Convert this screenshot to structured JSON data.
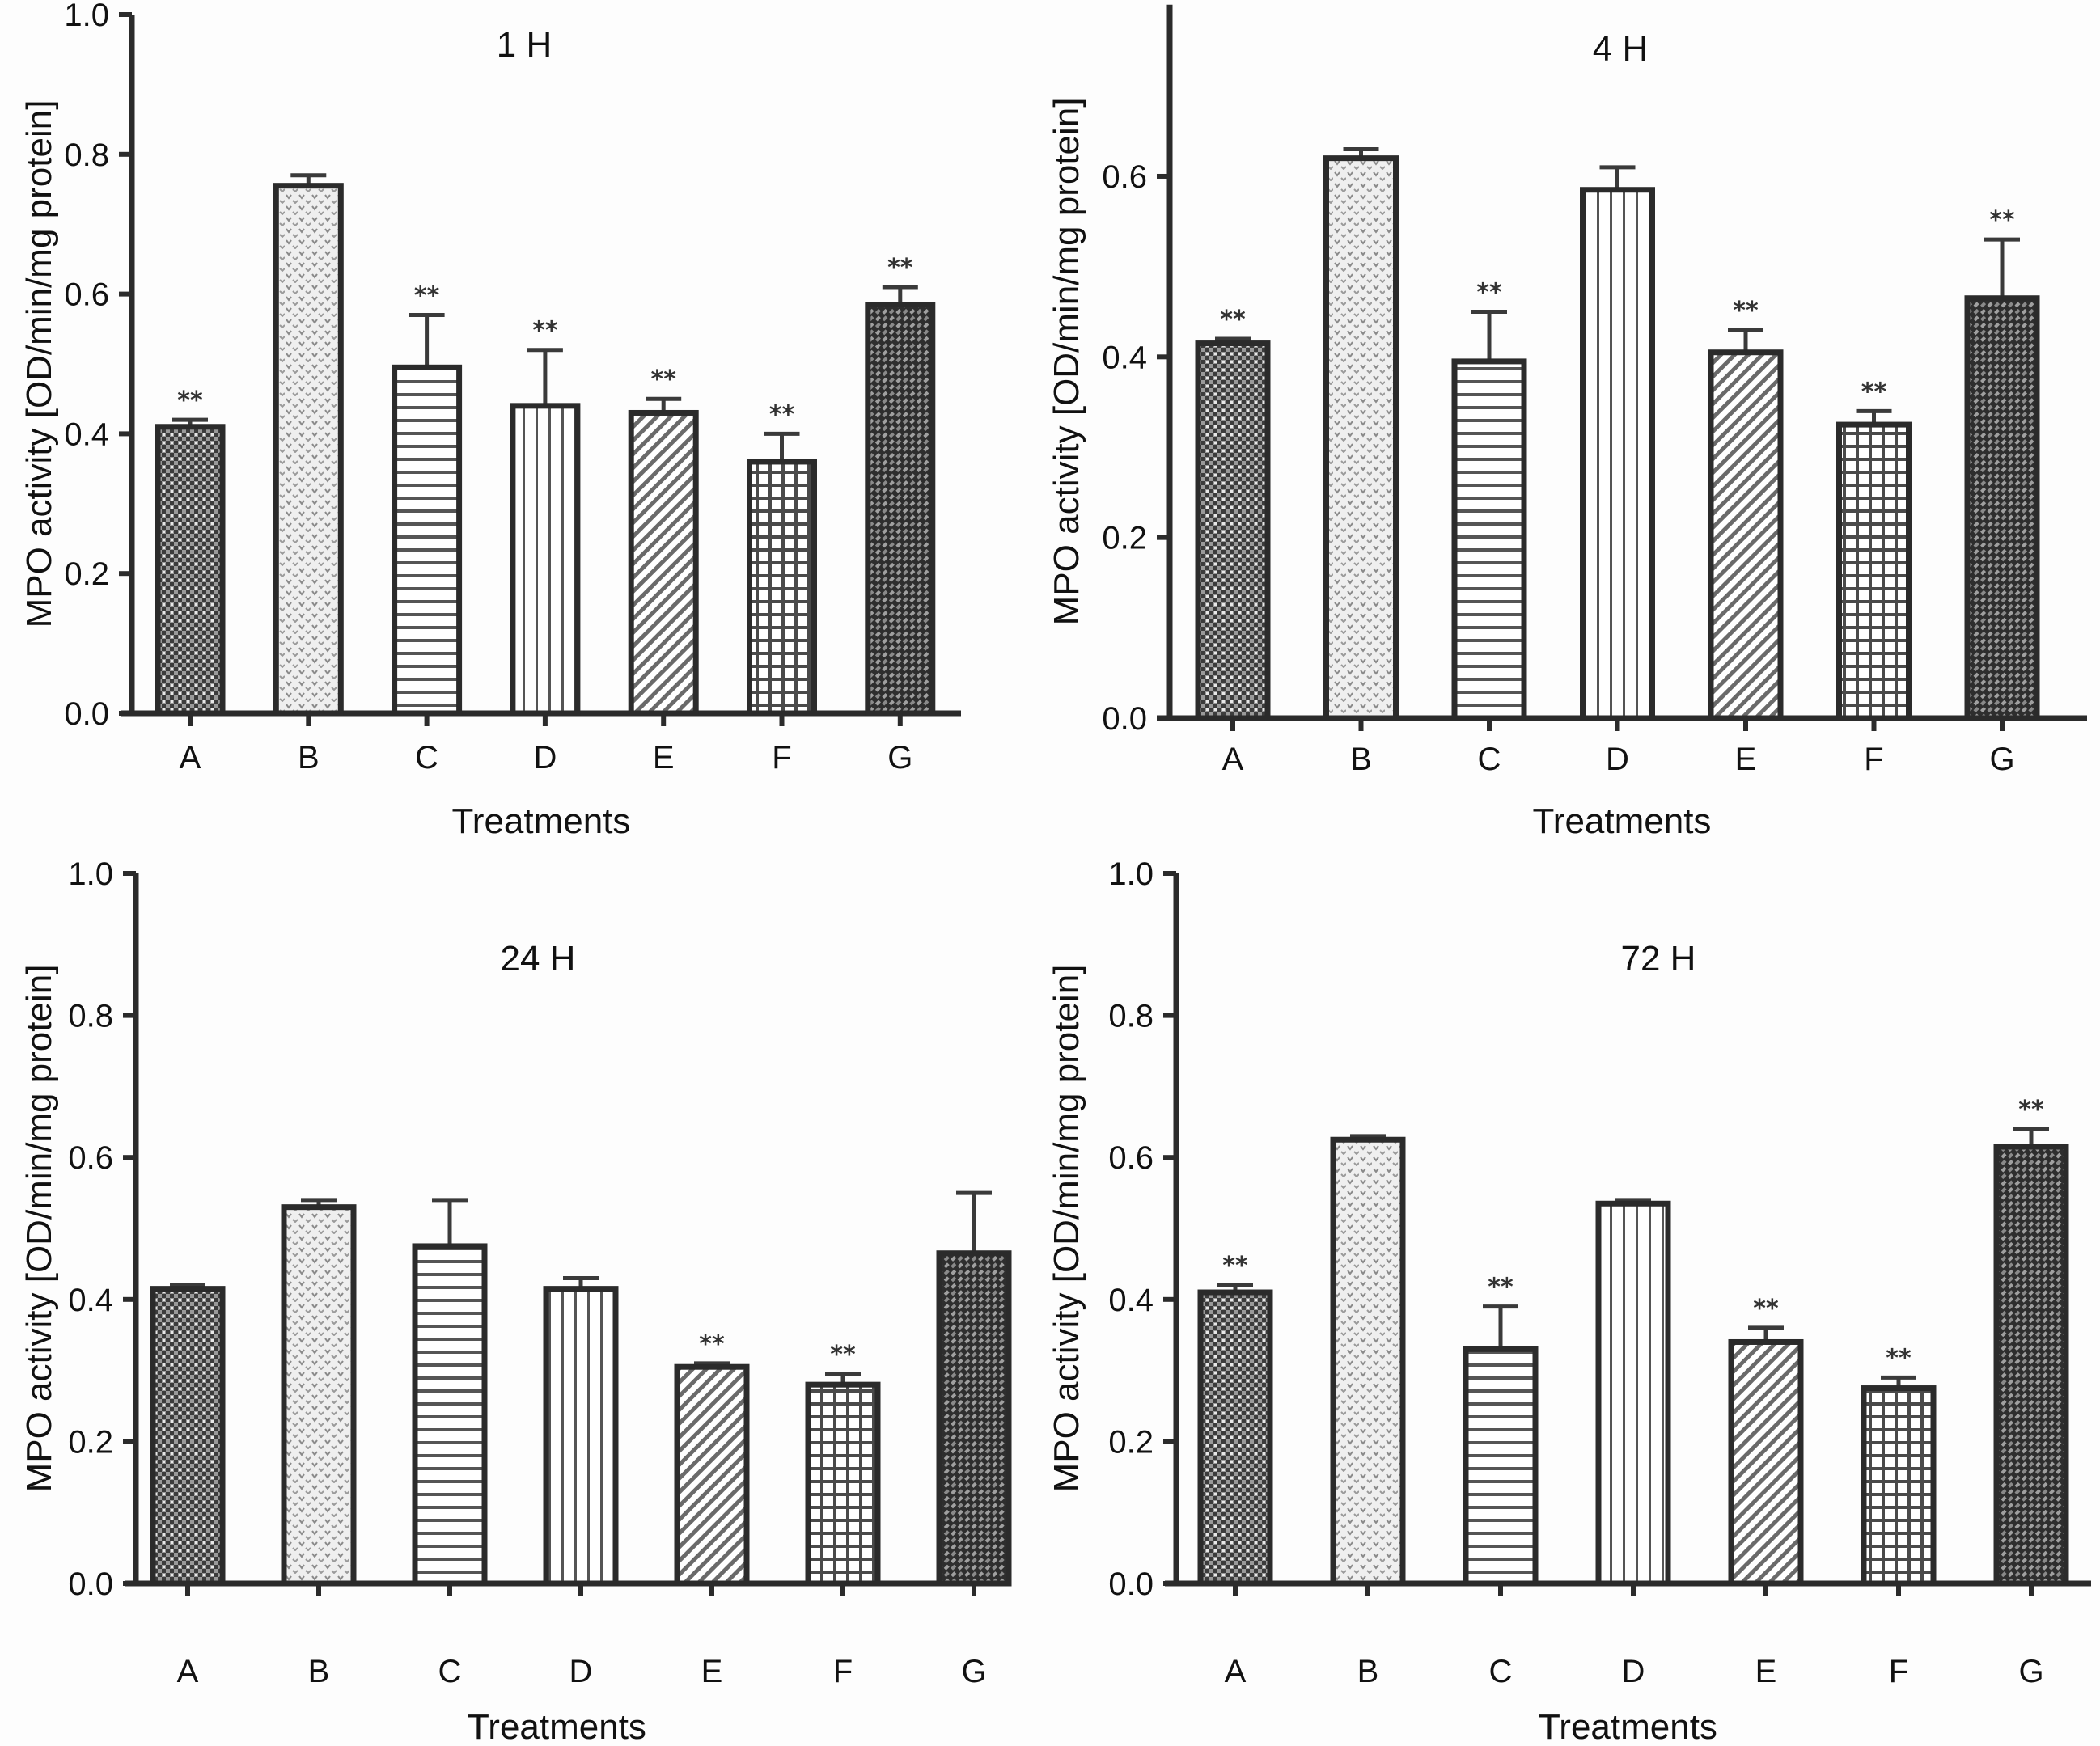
{
  "figure": {
    "ylabel": "MPO activity [OD/min/mg protein]",
    "xlabel": "Treatments",
    "significance_marker": "**"
  },
  "chart_data": [
    {
      "type": "bar",
      "title": "1 H",
      "xlabel": "Treatments",
      "ylabel": "MPO activity [OD/min/mg protein]",
      "categories": [
        "A",
        "B",
        "C",
        "D",
        "E",
        "F",
        "G"
      ],
      "values": [
        0.41,
        0.755,
        0.495,
        0.44,
        0.43,
        0.36,
        0.585
      ],
      "error_upper": [
        0.42,
        0.77,
        0.57,
        0.52,
        0.45,
        0.4,
        0.61
      ],
      "significant": [
        true,
        false,
        true,
        true,
        true,
        true,
        true
      ],
      "ylim": [
        0,
        1.0
      ],
      "yticks": [
        "0.0",
        "0.2",
        "0.4",
        "0.6",
        "0.8",
        "1.0"
      ],
      "ytick_values": [
        0,
        0.2,
        0.4,
        0.6,
        0.8,
        1.0
      ],
      "grid": false
    },
    {
      "type": "bar",
      "title": "4 H",
      "xlabel": "Treatments",
      "ylabel": "MPO activity [OD/min/mg protein]",
      "categories": [
        "A",
        "B",
        "C",
        "D",
        "E",
        "F",
        "G"
      ],
      "values": [
        0.415,
        0.62,
        0.395,
        0.585,
        0.405,
        0.325,
        0.465
      ],
      "error_upper": [
        0.42,
        0.63,
        0.45,
        0.61,
        0.43,
        0.34,
        0.53
      ],
      "significant": [
        true,
        false,
        true,
        false,
        true,
        true,
        true
      ],
      "ylim": [
        0,
        0.79
      ],
      "yticks": [
        "0.0",
        "0.2",
        "0.4",
        "0.6"
      ],
      "ytick_values": [
        0,
        0.2,
        0.4,
        0.6
      ],
      "grid": false
    },
    {
      "type": "bar",
      "title": "24 H",
      "xlabel": "Treatments",
      "ylabel": "MPO activity [OD/min/mg protein]",
      "categories": [
        "A",
        "B",
        "C",
        "D",
        "E",
        "F",
        "G"
      ],
      "values": [
        0.415,
        0.53,
        0.475,
        0.415,
        0.305,
        0.28,
        0.465
      ],
      "error_upper": [
        0.42,
        0.54,
        0.54,
        0.43,
        0.31,
        0.295,
        0.55
      ],
      "significant": [
        false,
        false,
        false,
        false,
        true,
        true,
        false
      ],
      "ylim": [
        0,
        1.0
      ],
      "yticks": [
        "0.0",
        "0.2",
        "0.4",
        "0.6",
        "0.8",
        "1.0"
      ],
      "ytick_values": [
        0,
        0.2,
        0.4,
        0.6,
        0.8,
        1.0
      ],
      "grid": false
    },
    {
      "type": "bar",
      "title": "72 H",
      "xlabel": "Treatments",
      "ylabel": "MPO activity [OD/min/mg protein]",
      "categories": [
        "A",
        "B",
        "C",
        "D",
        "E",
        "F",
        "G"
      ],
      "values": [
        0.41,
        0.625,
        0.33,
        0.535,
        0.34,
        0.275,
        0.615
      ],
      "error_upper": [
        0.42,
        0.63,
        0.39,
        0.54,
        0.36,
        0.29,
        0.64
      ],
      "significant": [
        true,
        false,
        true,
        false,
        true,
        true,
        true
      ],
      "ylim": [
        0,
        1.0
      ],
      "yticks": [
        "0.0",
        "0.2",
        "0.4",
        "0.6",
        "0.8",
        "1.0"
      ],
      "ytick_values": [
        0,
        0.2,
        0.4,
        0.6,
        0.8,
        1.0
      ],
      "grid": false
    }
  ]
}
